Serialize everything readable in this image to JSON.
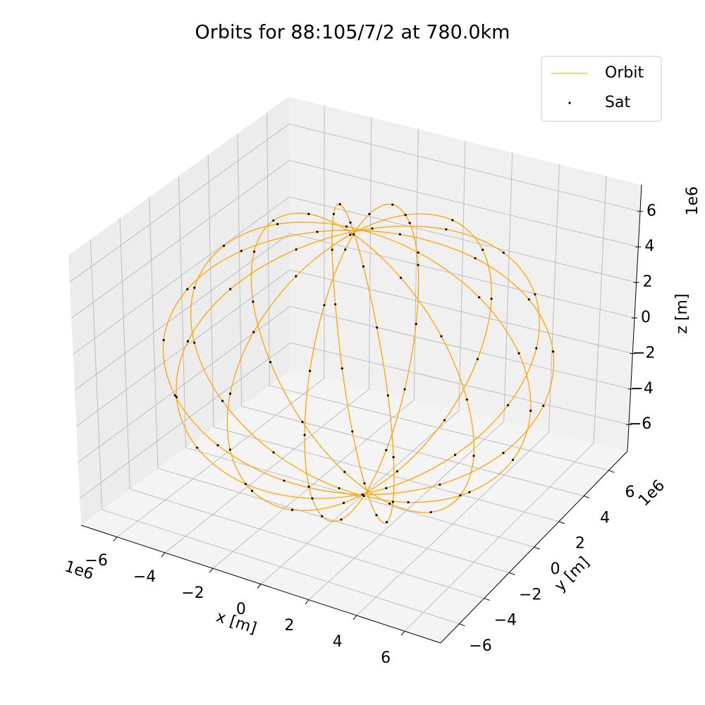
{
  "chart_data": {
    "type": "orbits3d",
    "title": "Orbits for 88:105/7/2 at 780.0km",
    "xlabel": "x [m]",
    "ylabel": "y [m]",
    "zlabel": "z [m]",
    "xoffset": "1e6",
    "yoffset": "1e6",
    "zoffset": "1e6",
    "xlim": [
      -7.5,
      7.5
    ],
    "ylim": [
      -7.5,
      7.5
    ],
    "zlim": [
      -7.5,
      7.5
    ],
    "xticks": [
      {
        "value": -6,
        "label": "−6"
      },
      {
        "value": -4,
        "label": "−4"
      },
      {
        "value": -2,
        "label": "−2"
      },
      0,
      2,
      4,
      6
    ],
    "yticks": [
      {
        "value": -6,
        "label": "−6"
      },
      {
        "value": -4,
        "label": "−4"
      },
      {
        "value": -2,
        "label": "−2"
      },
      0,
      2,
      4,
      6
    ],
    "zticks": [
      {
        "value": -6,
        "label": "−6"
      },
      {
        "value": -4,
        "label": "−4"
      },
      {
        "value": -2,
        "label": "−2"
      },
      0,
      2,
      4,
      6
    ],
    "grid": true,
    "legend": "upper right",
    "series": [
      {
        "name": "Orbit",
        "color": "#ffa500"
      },
      {
        "name": "Sat",
        "color": "#000000"
      }
    ],
    "planes": [
      {
        "x": [
          7.15,
          6.53,
          4.78,
          2.21,
          -0.75,
          -3.58,
          -5.78,
          -6.99,
          -6.99,
          -5.78,
          -3.58,
          -0.75,
          2.21,
          4.78,
          6.53
        ],
        "y": [
          0,
          0.1,
          0.19,
          0.24,
          0.25,
          0.22,
          0.15,
          0.05,
          -0.05,
          -0.15,
          -0.22,
          -0.25,
          -0.24,
          -0.19,
          -0.1
        ],
        "z": [
          0,
          2.91,
          5.31,
          6.8,
          7.11,
          6.19,
          4.2,
          1.49,
          -1.49,
          -4.2,
          -6.19,
          -7.11,
          -6.8,
          -5.31,
          -2.91
        ]
      },
      {
        "x": [
          6.39,
          5.47,
          3.62,
          1.13,
          -1.54,
          -3.96,
          -5.67,
          -6.43,
          -6.06,
          -4.65,
          -2.43,
          0.21,
          2.81,
          4.92,
          6.18
        ],
        "y": [
          3.11,
          2.78,
          1.97,
          0.82,
          -0.47,
          -1.68,
          -2.6,
          -3.07,
          -3.01,
          -2.42,
          -1.43,
          -0.18,
          1.11,
          2.18,
          2.89
        ],
        "z": [
          0.85,
          3.67,
          5.85,
          7.02,
          6.97,
          5.72,
          3.48,
          0.64,
          -2.31,
          -4.87,
          -6.58,
          -7.15,
          -6.49,
          -4.7,
          -2.11
        ]
      },
      {
        "x": [
          4.28,
          3.41,
          1.94,
          0.13,
          -1.68,
          -3.22,
          -4.2,
          -4.45,
          -3.94,
          -2.73,
          -1.06,
          0.79,
          2.51,
          3.79,
          4.42
        ],
        "y": [
          5.47,
          4.52,
          2.79,
          0.57,
          -1.73,
          -3.75,
          -5.12,
          -5.59,
          -5.1,
          -3.73,
          -1.72,
          0.6,
          2.81,
          4.53,
          5.47
        ],
        "z": [
          1.69,
          4.37,
          6.3,
          7.13,
          6.73,
          5.17,
          2.71,
          -0.21,
          -3.1,
          -5.46,
          -6.86,
          -7.09,
          -6.08,
          -4.03,
          -1.28
        ]
      },
      {
        "x": [
          1.4,
          0.96,
          0.35,
          -0.31,
          -0.93,
          -1.38,
          -1.59,
          -1.53,
          -1.21,
          -0.68,
          -0.02,
          0.64,
          1.18,
          1.52,
          1.6
        ],
        "y": [
          6.54,
          5.0,
          2.59,
          -0.25,
          -3.07,
          -5.34,
          -6.71,
          -6.9,
          -5.91,
          -3.89,
          -1.19,
          1.7,
          4.31,
          6.16,
          6.96
        ],
        "z": [
          2.51,
          5.02,
          6.66,
          7.14,
          6.39,
          4.54,
          1.9,
          -1.07,
          -3.85,
          -5.97,
          -7.05,
          -6.92,
          -5.59,
          -3.29,
          -0.43
        ]
      },
      {
        "x": [
          -1.52,
          -1.18,
          -0.64,
          0.02,
          0.68,
          1.21,
          1.53,
          1.59,
          1.38,
          0.93,
          0.31,
          -0.35,
          -0.96,
          -1.4,
          -1.6
        ],
        "y": [
          6.16,
          4.31,
          1.7,
          -1.19,
          -3.89,
          -5.91,
          -6.9,
          -6.71,
          -5.34,
          -3.07,
          -0.25,
          2.59,
          5.0,
          6.54,
          6.96
        ],
        "z": [
          3.29,
          5.59,
          6.92,
          7.05,
          5.97,
          3.85,
          1.07,
          -1.9,
          -4.54,
          -6.39,
          -7.14,
          -6.66,
          -5.02,
          -2.51,
          0.43
        ]
      },
      {
        "x": [
          -3.79,
          -2.51,
          -0.79,
          1.06,
          2.73,
          3.94,
          4.45,
          4.2,
          3.22,
          1.68,
          -0.13,
          -1.94,
          -3.41,
          -4.28,
          -4.42
        ],
        "y": [
          4.53,
          2.81,
          0.6,
          -1.72,
          -3.73,
          -5.1,
          -5.59,
          -5.12,
          -3.75,
          -1.73,
          0.57,
          2.79,
          4.52,
          5.47,
          5.47
        ],
        "z": [
          4.03,
          6.08,
          7.09,
          6.86,
          5.46,
          3.1,
          0.21,
          -2.71,
          -5.17,
          -6.73,
          -7.13,
          -6.3,
          -4.37,
          -1.69,
          1.28
        ]
      },
      {
        "x": [
          -4.92,
          -2.81,
          -0.21,
          2.43,
          4.65,
          6.06,
          6.43,
          5.67,
          3.96,
          1.54,
          -1.13,
          -3.62,
          -5.47,
          -6.39,
          -6.18
        ],
        "y": [
          2.18,
          1.11,
          -0.18,
          -1.43,
          -2.42,
          -3.01,
          -3.07,
          -2.6,
          -1.68,
          -0.47,
          0.82,
          1.97,
          2.78,
          3.11,
          2.89
        ],
        "z": [
          4.7,
          6.49,
          7.15,
          6.58,
          4.87,
          2.31,
          -0.64,
          -3.48,
          -5.72,
          -6.97,
          -7.02,
          -5.85,
          -3.67,
          -0.85,
          2.11
        ]
      }
    ]
  }
}
